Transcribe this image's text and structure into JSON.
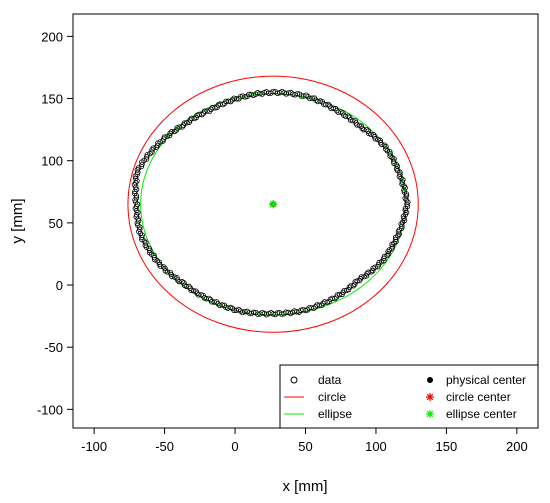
{
  "chart_data": {
    "type": "scatter",
    "xlabel": "x [mm]",
    "ylabel": "y [mm]",
    "xlim": [
      -115,
      215
    ],
    "ylim": [
      -115,
      218
    ],
    "xticks": [
      -100,
      -50,
      0,
      50,
      100,
      150,
      200
    ],
    "yticks": [
      -100,
      -50,
      0,
      50,
      100,
      150,
      200
    ],
    "grid": false,
    "legend_position": "bottom-right",
    "legend": [
      {
        "label": "data",
        "symbol": "open-circle",
        "color": "#000000"
      },
      {
        "label": "circle",
        "symbol": "line",
        "color": "#ff0000"
      },
      {
        "label": "ellipse",
        "symbol": "line",
        "color": "#00ee00"
      },
      {
        "label": "physical center",
        "symbol": "filled-circle",
        "color": "#000000"
      },
      {
        "label": "circle center",
        "symbol": "asterisk",
        "color": "#ff0000"
      },
      {
        "label": "ellipse center",
        "symbol": "asterisk",
        "color": "#00ee00"
      }
    ],
    "circle": {
      "cx": 27,
      "cy": 65,
      "r": 103,
      "color": "#ff0000"
    },
    "ellipse": {
      "cx": 27,
      "cy": 65,
      "rx": 94,
      "ry": 89,
      "color": "#00ee00"
    },
    "centers": {
      "physical": {
        "x": 27,
        "y": 65
      },
      "circle": {
        "x": 27,
        "y": 65
      },
      "ellipse": {
        "x": 27,
        "y": 65
      }
    },
    "data_outline": {
      "cx": 27,
      "cy": 65,
      "angles_deg": [
        0,
        15,
        30,
        45,
        60,
        75,
        90,
        105,
        120,
        135,
        150,
        165,
        180,
        195,
        210,
        225,
        240,
        255,
        270,
        285,
        300,
        315,
        330,
        345
      ],
      "radii": [
        95,
        93,
        92,
        88,
        88,
        90,
        90,
        89,
        88,
        90,
        95,
        100,
        97,
        97,
        94,
        90,
        89,
        89,
        88,
        88,
        87,
        86,
        90,
        92
      ],
      "point_count": 360
    }
  }
}
